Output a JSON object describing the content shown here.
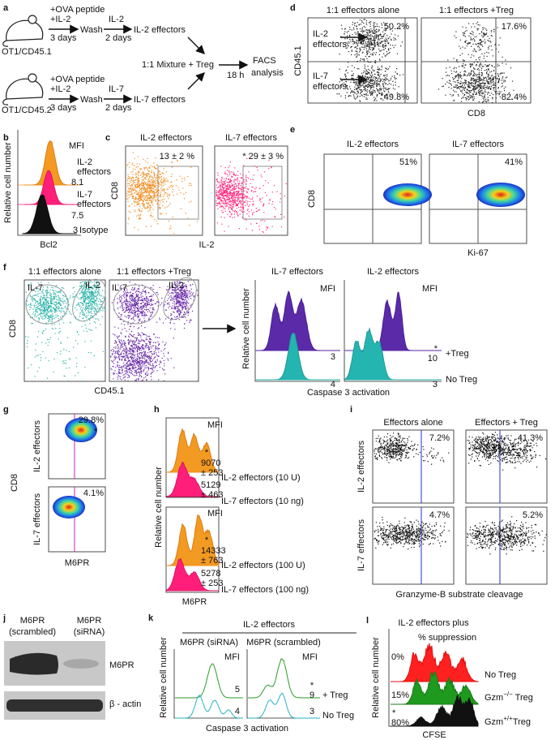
{
  "a": {
    "label": "a",
    "top": {
      "treat1": "+OVA peptide",
      "treat2": "+IL-2",
      "time1": "3 days",
      "wash": "Wash",
      "cytokine": "IL-2",
      "time2": "2 days",
      "result": "IL-2 effectors",
      "mouse": "OT1/CD45.1"
    },
    "bottom": {
      "treat1": "+OVA peptide",
      "treat2": "+IL-2",
      "time1": "3 days",
      "wash": "Wash",
      "cytokine": "IL-7",
      "time2": "2 days",
      "result": "IL-7 effectors",
      "mouse": "OT1/CD45.2"
    },
    "mix": "1:1 Mixture + Treg",
    "time": "18 h",
    "facs1": "FACS",
    "facs2": "analysis"
  },
  "b": {
    "label": "b",
    "mfi": "MFI",
    "il2a": "IL-2",
    "il2b": "effectors",
    "il2mfi": "8.1",
    "il7a": "IL-7",
    "il7b": "effectors",
    "il7mfi": "7.5",
    "isoMfi": "3",
    "iso": "Isotype",
    "ylabel": "Relative cell number",
    "xlabel": "Bcl2"
  },
  "c": {
    "label": "c",
    "title1": "IL-2 effectors",
    "title2": "IL-7 effectors",
    "val1": "13 ± 2 %",
    "val2": "* 29 ± 3 %",
    "ylabel": "CD8",
    "xlabel": "IL-2"
  },
  "d": {
    "label": "d",
    "title1": "1:1 effectors alone",
    "title2": "1:1 effectors +Treg",
    "q1": "50.2%",
    "q2": "49.8%",
    "q3": "17.6%",
    "star": "*",
    "q4": "82.4%",
    "il2a": "IL-2",
    "il2b": "effectors",
    "il7a": "IL-7",
    "il7b": "effectors",
    "ylabel": "CD45.1",
    "xlabel": "CD8"
  },
  "e": {
    "label": "e",
    "title1": "IL-2 effectors",
    "title2": "IL-7 effectors",
    "val1": "51%",
    "val2": "41%",
    "ylabel": "CD8",
    "xlabel": "Ki-67"
  },
  "f": {
    "label": "f",
    "title1": "1:1 effectors alone",
    "title2": "1:1 effectors +Treg",
    "g1": "IL-7",
    "g2": "IL-2",
    "g3": "IL-7",
    "g4": "IL-2",
    "ylabel": "CD8",
    "xlabel": "CD45.1",
    "htitle1": "IL-7 effectors",
    "htitle2": "IL-2 effectors",
    "mfi1": "MFI",
    "mfi2": "MFI",
    "v1": "3",
    "v2": "4",
    "star": "*",
    "v3": "10",
    "v4": "3",
    "treg": "+Treg",
    "notreg": "No Treg",
    "hylabel": "Relative cell number",
    "hxlabel": "Caspase 3 activation"
  },
  "g": {
    "label": "g",
    "val1": "29.8%",
    "star": "*",
    "val2": "4.1%",
    "row1": "IL-2  effectors",
    "row2": "IL-7  effectors",
    "ylabel": "CD8",
    "xlabel": "M6PR"
  },
  "h": {
    "label": "h",
    "mfi1": "MFI",
    "star1": "*",
    "v1": "9070",
    "e1": "± 253",
    "name1": "IL-2 effectors (10 U)",
    "v2": "5129",
    "e2": "± 463",
    "name2": "IL-7 effectors (10 ng)",
    "mfi2": "MFI",
    "star2": "*",
    "v3": "14333",
    "e3": "± 763",
    "name3": "IL-2 effectors (100 U)",
    "v4": "5278",
    "e4": "± 253",
    "name4": "IL-7 effectors (100 ng)",
    "ylabel": "Relative cell number",
    "xlabel": "M6PR"
  },
  "i": {
    "label": "i",
    "title1": "Effectors alone",
    "title2": "Effectors + Treg",
    "q1": "7.2%",
    "q2": "41.3%",
    "star": "*",
    "q3": "4.7%",
    "q4": "5.2%",
    "row1": "IL-2  effectors",
    "row2": "IL-7  effectors",
    "xlabel": "Granzyme-B substrate cleavage"
  },
  "j": {
    "label": "j",
    "col1a": "M6PR",
    "col1b": "(scrambled)",
    "col2a": "M6PR",
    "col2b": "(siRNA)",
    "band1": "M6PR",
    "band2": "β - actin"
  },
  "k": {
    "label": "k",
    "title": "IL-2 effectors",
    "sub1": "M6PR (siRNA)",
    "sub2": "M6PR (scrambled)",
    "mfi1": "MFI",
    "mfi2": "MFI",
    "v1": "5",
    "v2": "4",
    "star": "*",
    "v3": "9",
    "v4": "3",
    "treg": "+ Treg",
    "notreg": "No Treg",
    "ylabel": "Relative cell number",
    "xlabel": "Caspase 3 activation"
  },
  "l": {
    "label": "l",
    "title": "IL-2 effectors plus",
    "supp": "% suppression",
    "p1": "0%",
    "p2": "15%",
    "star": "*",
    "p3": "80%",
    "n1": "No Treg",
    "n2": {
      "base": "Gzm",
      "sup": "−/−",
      "tail": " Treg"
    },
    "n3": {
      "base": "Gzm",
      "sup": "+/+",
      "tail": "Treg"
    },
    "ylabel": "Relative cell number",
    "xlabel": "CFSE"
  }
}
